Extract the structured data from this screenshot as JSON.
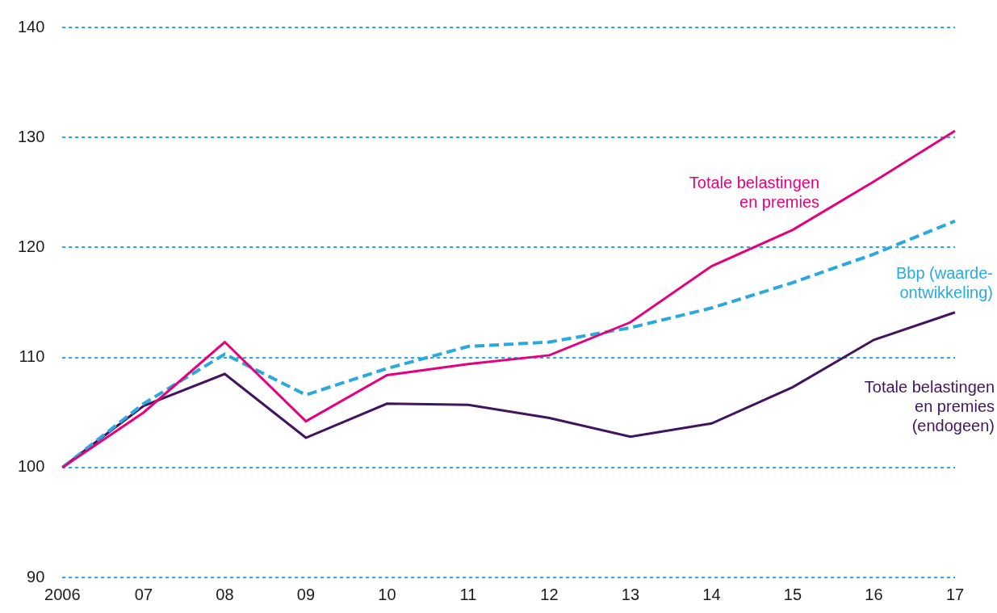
{
  "chart_data": {
    "type": "line",
    "categories": [
      "2006",
      "07",
      "08",
      "09",
      "10",
      "11",
      "12",
      "13",
      "14",
      "15",
      "16",
      "17"
    ],
    "ylim": [
      90,
      140
    ],
    "yticks": [
      90,
      100,
      110,
      120,
      130,
      140
    ],
    "grid": true,
    "series": [
      {
        "name": "Totale belastingen\nen premies",
        "color": "#e5007e",
        "line_style": "solid",
        "values": [
          100,
          105.0,
          111.4,
          104.2,
          108.4,
          109.4,
          110.2,
          113.2,
          118.3,
          121.6,
          126.0,
          130.6
        ]
      },
      {
        "name": "Bbp (waarde-\nontwikkeling)",
        "color": "#2aa9e0",
        "line_style": "dashed",
        "values": [
          100,
          105.8,
          110.3,
          106.6,
          109.0,
          111.0,
          111.4,
          112.7,
          114.5,
          116.8,
          119.4,
          122.4
        ]
      },
      {
        "name": "Totale belastingen\nen premies\n(endogeen)",
        "color": "#42145f",
        "line_style": "solid",
        "values": [
          100,
          105.6,
          108.5,
          102.7,
          105.8,
          105.7,
          104.5,
          102.8,
          104.0,
          107.3,
          111.6,
          114.1
        ]
      }
    ]
  }
}
